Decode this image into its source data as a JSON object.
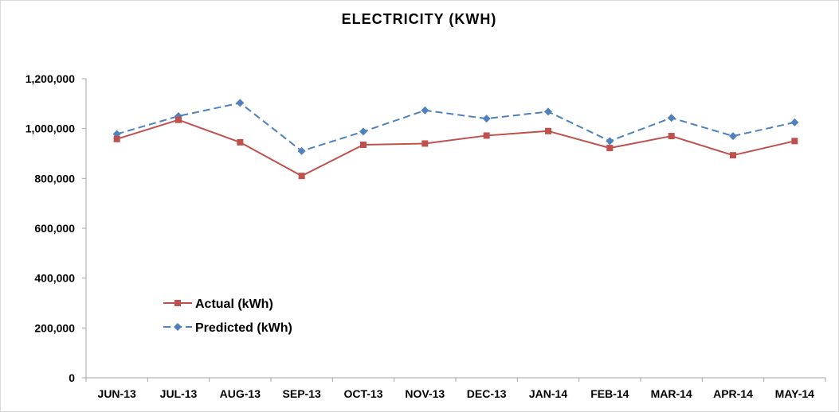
{
  "chart_data": {
    "type": "line",
    "title": "ELECTRICITY (KWH)",
    "xlabel": "",
    "ylabel": "",
    "categories": [
      "JUN-13",
      "JUL-13",
      "AUG-13",
      "SEP-13",
      "OCT-13",
      "NOV-13",
      "DEC-13",
      "JAN-14",
      "FEB-14",
      "MAR-14",
      "APR-14",
      "MAY-14"
    ],
    "ylim": [
      0,
      1200000
    ],
    "yticks": [
      0,
      200000,
      400000,
      600000,
      800000,
      1000000,
      1200000
    ],
    "ytick_labels": [
      "0",
      "200,000",
      "400,000",
      "600,000",
      "800,000",
      "1,000,000",
      "1,200,000"
    ],
    "grid": false,
    "legend_position": "left-lower",
    "series": [
      {
        "name": "Actual (kWh)",
        "color": "#c0504d",
        "marker": "square",
        "line_style": "solid",
        "values": [
          958000,
          1035000,
          945000,
          810000,
          935000,
          940000,
          972000,
          990000,
          922000,
          970000,
          893000,
          950000
        ]
      },
      {
        "name": "Predicted (kWh)",
        "color": "#4f81bd",
        "marker": "diamond",
        "line_style": "dashed",
        "values": [
          978000,
          1050000,
          1103000,
          910000,
          988000,
          1073000,
          1040000,
          1068000,
          950000,
          1043000,
          970000,
          1025000
        ]
      }
    ]
  }
}
